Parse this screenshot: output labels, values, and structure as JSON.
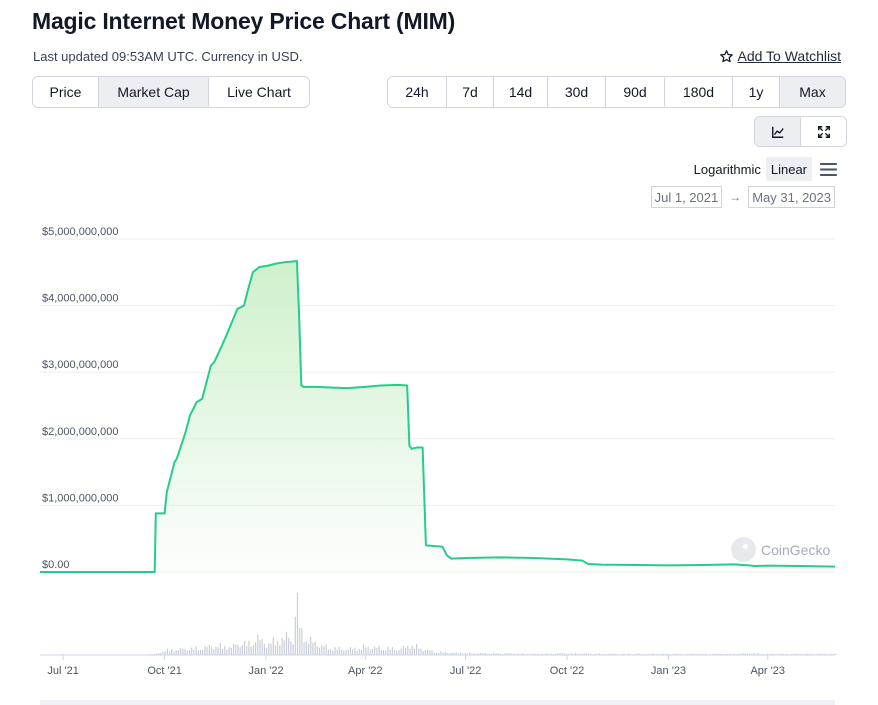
{
  "header": {
    "title": "Magic Internet Money Price Chart (MIM)",
    "updated": "Last updated 09:53AM UTC. Currency in USD.",
    "watchlist_label": "Add To Watchlist"
  },
  "type_tabs": [
    {
      "label": "Price",
      "active": false
    },
    {
      "label": "Market Cap",
      "active": true
    },
    {
      "label": "Live Chart",
      "active": false
    }
  ],
  "range_tabs": [
    {
      "label": "24h",
      "active": false
    },
    {
      "label": "7d",
      "active": false
    },
    {
      "label": "14d",
      "active": false
    },
    {
      "label": "30d",
      "active": false
    },
    {
      "label": "90d",
      "active": false
    },
    {
      "label": "180d",
      "active": false
    },
    {
      "label": "1y",
      "active": false
    },
    {
      "label": "Max",
      "active": true
    }
  ],
  "view_icons": [
    "line-chart-icon",
    "fullscreen-icon"
  ],
  "scale": {
    "logarithmic_label": "Logarithmic",
    "linear_label": "Linear",
    "active": "Linear",
    "menu_icon": "hamburger-menu-icon"
  },
  "date_range": {
    "from": "Jul 1, 2021",
    "to": "May 31, 2023"
  },
  "watermark": "CoinGecko",
  "colors": {
    "line": "#26cc8b",
    "fill_top": "#c9efc7",
    "volume": "#c9ced6",
    "grid": "#eeeeee"
  },
  "chart_data": {
    "type": "area",
    "xlim": [
      "2021-06-10",
      "2023-06-01"
    ],
    "ylim": [
      0,
      5000000000
    ],
    "ylabel": "",
    "xlabel": "",
    "y_ticks": [
      0,
      1000000000,
      2000000000,
      3000000000,
      4000000000,
      5000000000
    ],
    "y_tick_labels": [
      "$0.00",
      "$1,000,000,000",
      "$2,000,000,000",
      "$3,000,000,000",
      "$4,000,000,000",
      "$5,000,000,000"
    ],
    "x_ticks": [
      "2021-07-01",
      "2021-10-01",
      "2022-01-01",
      "2022-04-01",
      "2022-07-01",
      "2022-10-01",
      "2023-01-01",
      "2023-04-01"
    ],
    "x_tick_labels": [
      "Jul '21",
      "Oct '21",
      "Jan '22",
      "Apr '22",
      "Jul '22",
      "Oct '22",
      "Jan '23",
      "Apr '23"
    ],
    "grid": true,
    "legend": "none",
    "series": [
      {
        "x": [
          "2021-06-10",
          "2021-09-22",
          "2021-09-23",
          "2021-10-01",
          "2021-10-03",
          "2021-10-10",
          "2021-10-12",
          "2021-10-20",
          "2021-10-24",
          "2021-10-30",
          "2021-11-04",
          "2021-11-12",
          "2021-11-15",
          "2021-11-22",
          "2021-11-26",
          "2021-12-01",
          "2021-12-06",
          "2021-12-12",
          "2021-12-15",
          "2021-12-20",
          "2021-12-26",
          "2022-01-03",
          "2022-01-10",
          "2022-01-17",
          "2022-01-24",
          "2022-01-29",
          "2022-01-31",
          "2022-02-02",
          "2022-02-04",
          "2022-02-15",
          "2022-03-01",
          "2022-03-15",
          "2022-04-01",
          "2022-04-15",
          "2022-05-01",
          "2022-05-09",
          "2022-05-11",
          "2022-05-13",
          "2022-05-18",
          "2022-05-23",
          "2022-05-26",
          "2022-06-10",
          "2022-06-14",
          "2022-06-18",
          "2022-07-01",
          "2022-08-01",
          "2022-09-01",
          "2022-10-01",
          "2022-10-15",
          "2022-10-20",
          "2022-11-01",
          "2022-12-01",
          "2023-01-01",
          "2023-02-01",
          "2023-03-01",
          "2023-03-15",
          "2023-03-20",
          "2023-04-01",
          "2023-05-01",
          "2023-06-01"
        ],
        "values": [
          0,
          0,
          880000000,
          880000000,
          1200000000,
          1650000000,
          1700000000,
          2100000000,
          2350000000,
          2550000000,
          2600000000,
          3100000000,
          3150000000,
          3400000000,
          3550000000,
          3750000000,
          3950000000,
          4000000000,
          4200000000,
          4500000000,
          4580000000,
          4600000000,
          4630000000,
          4650000000,
          4660000000,
          4670000000,
          3850000000,
          2800000000,
          2780000000,
          2780000000,
          2770000000,
          2760000000,
          2780000000,
          2800000000,
          2810000000,
          2800000000,
          1900000000,
          1850000000,
          1870000000,
          1870000000,
          400000000,
          380000000,
          250000000,
          200000000,
          210000000,
          220000000,
          210000000,
          190000000,
          170000000,
          120000000,
          110000000,
          105000000,
          100000000,
          105000000,
          115000000,
          100000000,
          90000000,
          95000000,
          90000000,
          80000000
        ]
      }
    ],
    "volume_ylim": [
      0,
      100
    ],
    "volume": {
      "x": [
        "2021-07-01",
        "2021-08-01",
        "2021-09-01",
        "2021-09-23",
        "2021-10-01",
        "2021-10-15",
        "2021-11-01",
        "2021-11-15",
        "2021-12-01",
        "2021-12-08",
        "2021-12-15",
        "2021-12-22",
        "2022-01-01",
        "2022-01-10",
        "2022-01-20",
        "2022-01-25",
        "2022-01-28",
        "2022-02-01",
        "2022-02-10",
        "2022-02-20",
        "2022-03-01",
        "2022-03-15",
        "2022-04-01",
        "2022-04-15",
        "2022-05-01",
        "2022-05-10",
        "2022-05-12",
        "2022-05-20",
        "2022-06-01",
        "2022-06-15",
        "2022-07-01",
        "2022-08-01",
        "2022-09-01",
        "2022-10-01",
        "2022-11-01",
        "2022-12-01",
        "2023-01-01",
        "2023-02-01",
        "2023-03-01",
        "2023-03-15",
        "2023-04-01",
        "2023-05-01"
      ],
      "values": [
        0,
        0,
        0,
        2,
        8,
        10,
        12,
        16,
        14,
        22,
        18,
        30,
        20,
        24,
        32,
        26,
        100,
        40,
        24,
        16,
        12,
        10,
        14,
        12,
        10,
        16,
        18,
        12,
        6,
        4,
        3,
        3,
        2,
        3,
        2,
        2,
        2,
        2,
        2,
        3,
        2,
        2
      ]
    }
  }
}
